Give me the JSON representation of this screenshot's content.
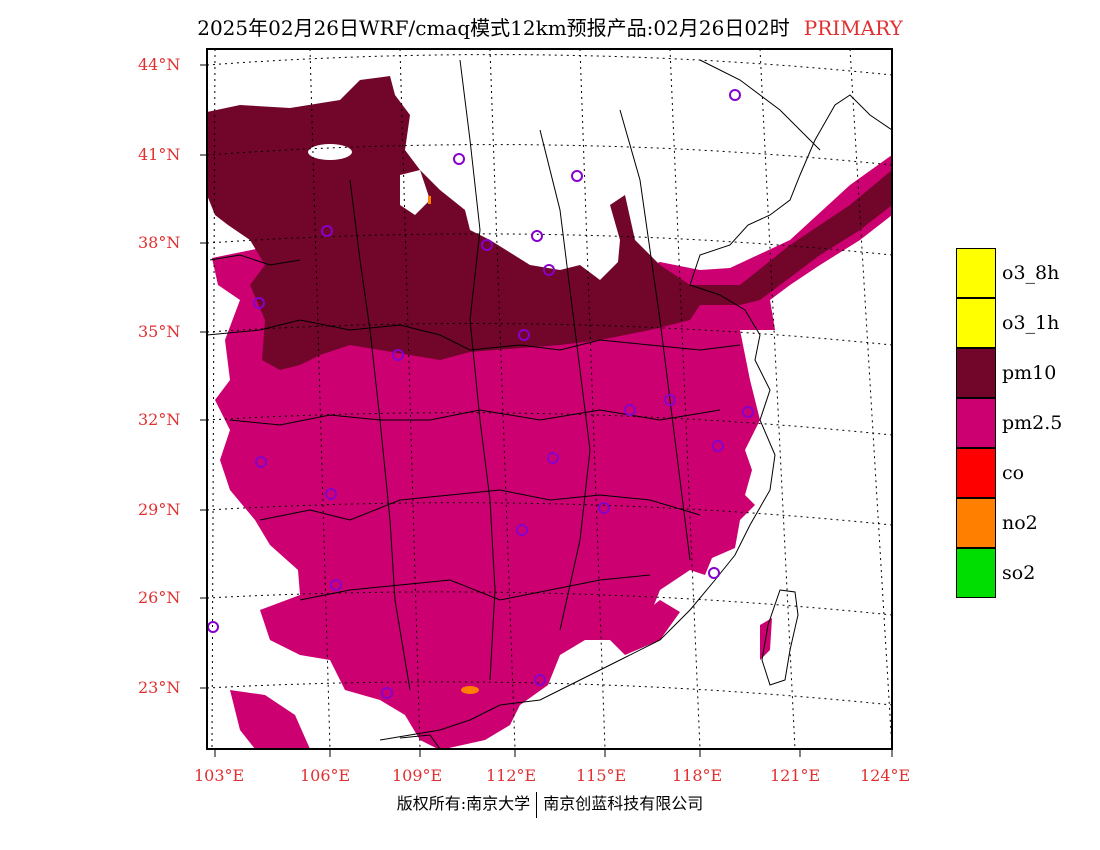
{
  "title": {
    "main": "2025年02月26日WRF/cmaq模式12km预报产品:02月26日02时",
    "tag": "PRIMARY"
  },
  "lat_labels": [
    "44°N",
    "41°N",
    "38°N",
    "35°N",
    "32°N",
    "29°N",
    "26°N",
    "23°N"
  ],
  "lon_labels": [
    "103°E",
    "106°E",
    "109°E",
    "112°E",
    "115°E",
    "118°E",
    "121°E",
    "124°E"
  ],
  "legend": [
    {
      "label": "o3_8h",
      "color": "#ffff00"
    },
    {
      "label": "o3_1h",
      "color": "#ffff00"
    },
    {
      "label": "pm10",
      "color": "#72052a"
    },
    {
      "label": "pm2.5",
      "color": "#cc0070"
    },
    {
      "label": "co",
      "color": "#ff0000"
    },
    {
      "label": "no2",
      "color": "#ff7f00"
    },
    {
      "label": "so2",
      "color": "#00dd00"
    }
  ],
  "footer": {
    "left": "版权所有:南京大学",
    "right": "南京创蓝科技有限公司"
  },
  "colors": {
    "pm10": "#72052a",
    "pm25": "#cc0070",
    "no2": "#ff7f00",
    "stations": "#8800cc",
    "label_red": "#e03030"
  }
}
